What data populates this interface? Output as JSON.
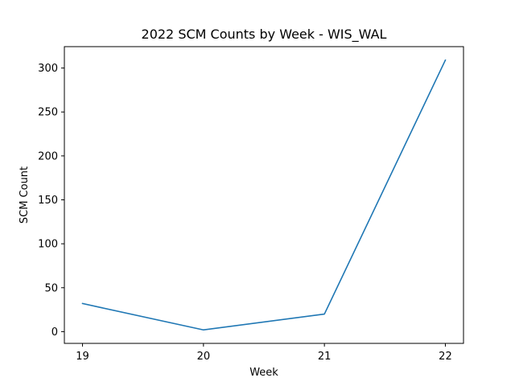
{
  "chart_data": {
    "type": "line",
    "title": "2022 SCM Counts by Week - WIS_WAL",
    "xlabel": "Week",
    "ylabel": "SCM Count",
    "x": [
      19,
      20,
      21,
      22
    ],
    "series": [
      {
        "values": [
          32,
          2,
          20,
          309
        ],
        "color": "#1f77b4"
      }
    ],
    "xticks": [
      19,
      20,
      21,
      22
    ],
    "yticks": [
      0,
      50,
      100,
      150,
      200,
      250,
      300
    ],
    "xlim": [
      18.85,
      22.15
    ],
    "ylim": [
      -13.35,
      324.35
    ],
    "grid": false,
    "legend": "none"
  }
}
